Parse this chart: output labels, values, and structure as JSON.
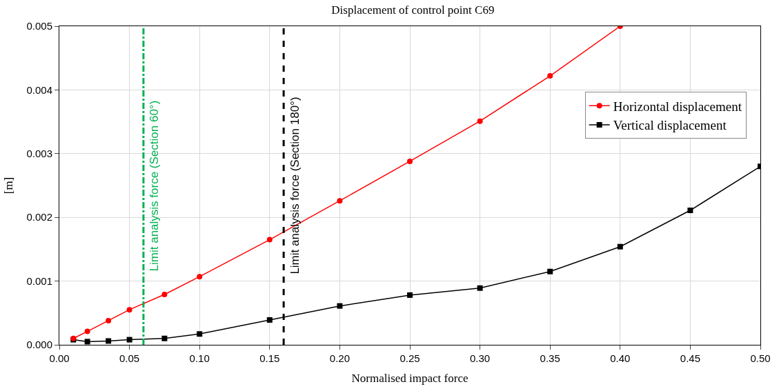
{
  "chart_data": {
    "type": "line",
    "title": "Displacement of control point C69",
    "xlabel": "Normalised impact force",
    "ylabel": "[m]",
    "xlim": [
      0,
      0.5
    ],
    "xticks": [
      {
        "value": 0,
        "label": "0.00"
      },
      {
        "value": 0.05,
        "label": "0.05"
      },
      {
        "value": 0.1,
        "label": "0.10"
      },
      {
        "value": 0.15,
        "label": "0.15"
      },
      {
        "value": 0.2,
        "label": "0.20"
      },
      {
        "value": 0.25,
        "label": "0.25"
      },
      {
        "value": 0.3,
        "label": "0.30"
      },
      {
        "value": 0.35,
        "label": "0.35"
      },
      {
        "value": 0.4,
        "label": "0.40"
      },
      {
        "value": 0.45,
        "label": "0.45"
      },
      {
        "value": 0.5,
        "label": "0.50"
      }
    ],
    "ylim": [
      0,
      0.005
    ],
    "yticks": [
      {
        "value": 0,
        "label": "0.000"
      },
      {
        "value": 0.001,
        "label": "0.001"
      },
      {
        "value": 0.002,
        "label": "0.002"
      },
      {
        "value": 0.003,
        "label": "0.003"
      },
      {
        "value": 0.004,
        "label": "0.004"
      },
      {
        "value": 0.005,
        "label": "0.005"
      }
    ],
    "grid": true,
    "legend": "right",
    "series": [
      {
        "name": "Horizontal displacement",
        "color": "#ff0000",
        "marker": "circle",
        "x": [
          0.01,
          0.02,
          0.035,
          0.05,
          0.075,
          0.1,
          0.15,
          0.2,
          0.25,
          0.3,
          0.35,
          0.4
        ],
        "values": [
          0.0001,
          0.00021,
          0.00038,
          0.00055,
          0.00079,
          0.00107,
          0.00165,
          0.00226,
          0.00288,
          0.00351,
          0.00422,
          0.005
        ]
      },
      {
        "name": "Vertical displacement",
        "color": "#000000",
        "marker": "square",
        "x": [
          0.01,
          0.02,
          0.035,
          0.05,
          0.075,
          0.1,
          0.15,
          0.2,
          0.25,
          0.3,
          0.35,
          0.4,
          0.45,
          0.5
        ],
        "values": [
          8e-05,
          5e-05,
          6e-05,
          8e-05,
          0.0001,
          0.00017,
          0.00039,
          0.00061,
          0.00078,
          0.00089,
          0.00115,
          0.00154,
          0.00211,
          0.0028
        ]
      }
    ],
    "ref_lines": [
      {
        "axis": "x",
        "value": 0.06,
        "label": "Limit analysis force (Section 60°)",
        "color": "#00b050",
        "line_style": "dashdot"
      },
      {
        "axis": "x",
        "value": 0.16,
        "label": "Limit analysis force (Section 180°)",
        "color": "#000000",
        "line_style": "dashed"
      }
    ]
  }
}
